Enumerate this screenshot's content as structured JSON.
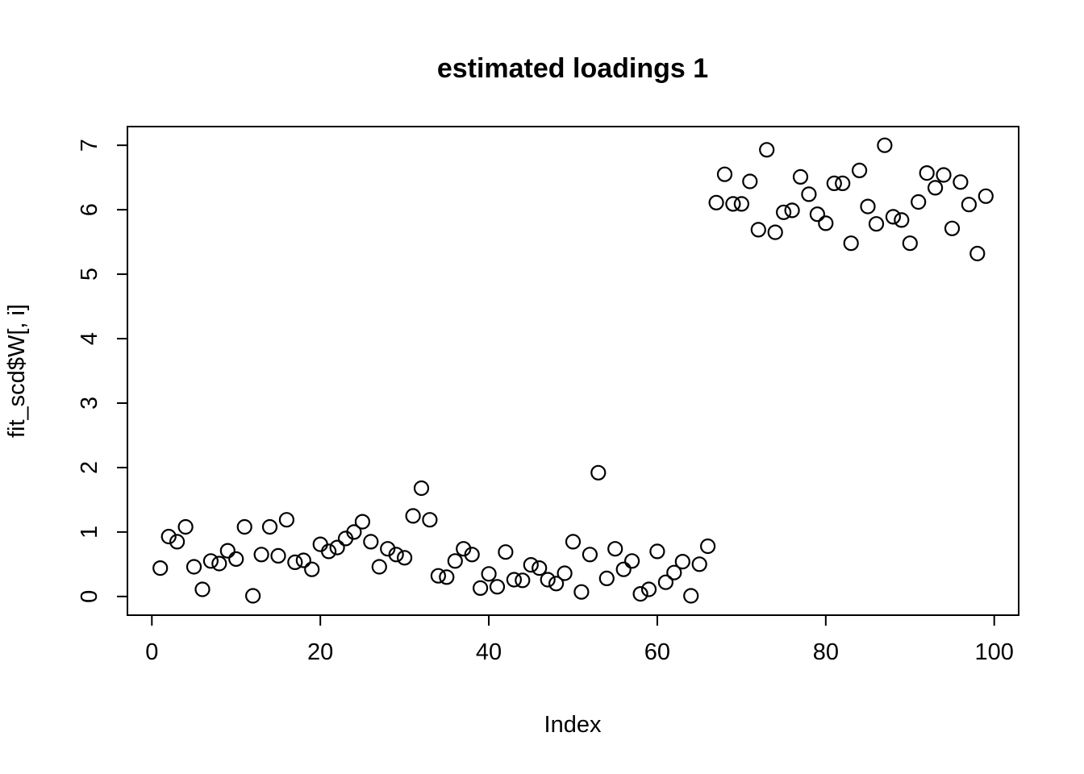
{
  "window": {
    "background_color": "#ffffff",
    "foreground_color": "#000000"
  },
  "chart_data": {
    "type": "scatter",
    "title": "estimated loadings 1",
    "xlabel": "Index",
    "ylabel": "fit_scd$W[, i]",
    "marker": "open-circle",
    "grid": false,
    "legend": "none",
    "x_ticks": [
      0,
      20,
      40,
      60,
      80,
      100
    ],
    "y_ticks": [
      0,
      1,
      2,
      3,
      4,
      5,
      6,
      7
    ],
    "xlim": [
      -2.9,
      102.9
    ],
    "ylim": [
      -0.29,
      7.29
    ],
    "x": [
      1,
      2,
      3,
      4,
      5,
      6,
      7,
      8,
      9,
      10,
      11,
      12,
      13,
      14,
      15,
      16,
      17,
      18,
      19,
      20,
      21,
      22,
      23,
      24,
      25,
      26,
      27,
      28,
      29,
      30,
      31,
      32,
      33,
      34,
      35,
      36,
      37,
      38,
      39,
      40,
      41,
      42,
      43,
      44,
      45,
      46,
      47,
      48,
      49,
      50,
      51,
      52,
      53,
      54,
      55,
      56,
      57,
      58,
      59,
      60,
      61,
      62,
      63,
      64,
      65,
      66,
      67,
      68,
      69,
      70,
      71,
      72,
      73,
      74,
      75,
      76,
      77,
      78,
      79,
      80,
      81,
      82,
      83,
      84,
      85,
      86,
      87,
      88,
      89,
      90,
      91,
      92,
      93,
      94,
      95,
      96,
      97,
      98,
      99
    ],
    "y": [
      0.44,
      0.93,
      0.85,
      1.08,
      0.46,
      0.11,
      0.55,
      0.51,
      0.71,
      0.58,
      1.08,
      0.01,
      0.65,
      1.08,
      0.63,
      1.19,
      0.53,
      0.56,
      0.42,
      0.81,
      0.7,
      0.76,
      0.9,
      1.0,
      1.16,
      0.85,
      0.46,
      0.74,
      0.65,
      0.6,
      1.25,
      1.68,
      1.19,
      0.32,
      0.3,
      0.55,
      0.74,
      0.65,
      0.13,
      0.35,
      0.15,
      0.69,
      0.26,
      0.25,
      0.49,
      0.44,
      0.26,
      0.2,
      0.36,
      0.85,
      0.07,
      0.65,
      1.92,
      0.28,
      0.74,
      0.42,
      0.55,
      0.04,
      0.11,
      0.7,
      0.22,
      0.37,
      0.54,
      0.01,
      0.5,
      0.78,
      6.11,
      6.55,
      6.09,
      6.09,
      6.44,
      5.69,
      6.93,
      5.65,
      5.96,
      5.99,
      6.51,
      6.24,
      5.93,
      5.79,
      6.41,
      6.41,
      5.48,
      6.61,
      6.05,
      5.78,
      7.0,
      5.89,
      5.84,
      5.48,
      6.12,
      6.57,
      6.34,
      6.54,
      5.71,
      6.43,
      6.08,
      5.32,
      6.21
    ]
  }
}
